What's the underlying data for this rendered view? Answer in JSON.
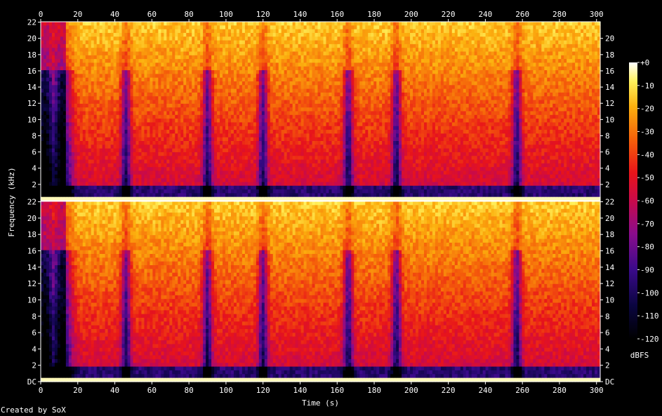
{
  "chart_data": {
    "type": "heatmap",
    "title": "",
    "xlabel": "Time (s)",
    "ylabel": "Frequency (kHz)",
    "x_ticks": [
      "0",
      "20",
      "40",
      "60",
      "80",
      "100",
      "120",
      "140",
      "160",
      "180",
      "200",
      "220",
      "240",
      "260",
      "280",
      "300"
    ],
    "xlim": [
      0,
      302
    ],
    "channels": [
      {
        "y_ticks_left": [
          "22",
          "20",
          "18",
          "16",
          "14",
          "12",
          "10",
          "8",
          "6",
          "4",
          "2"
        ],
        "y_ticks_right": [
          "20",
          "18",
          "16",
          "14",
          "12",
          "10",
          "8",
          "6",
          "4",
          "2"
        ]
      },
      {
        "y_ticks_left": [
          "22",
          "20",
          "18",
          "16",
          "14",
          "12",
          "10",
          "8",
          "6",
          "4",
          "2",
          "DC"
        ],
        "y_ticks_right": [
          "22",
          "20",
          "18",
          "16",
          "14",
          "12",
          "10",
          "8",
          "6",
          "4",
          "2",
          "DC"
        ]
      }
    ],
    "ylim_khz": [
      0,
      22.05
    ],
    "colorbar": {
      "label": "dBFS",
      "ticks": [
        "+0",
        "-10",
        "-20",
        "-30",
        "-40",
        "-50",
        "-60",
        "-70",
        "-80",
        "-90",
        "-100",
        "-110",
        "-120"
      ],
      "range": [
        -120,
        0
      ]
    },
    "dips_seconds": [
      2,
      12,
      46,
      90,
      120,
      166,
      192,
      257
    ],
    "colors": {
      "background": "#000000",
      "text": "#ffffff"
    }
  },
  "footer": {
    "credit": "Created by SoX"
  }
}
